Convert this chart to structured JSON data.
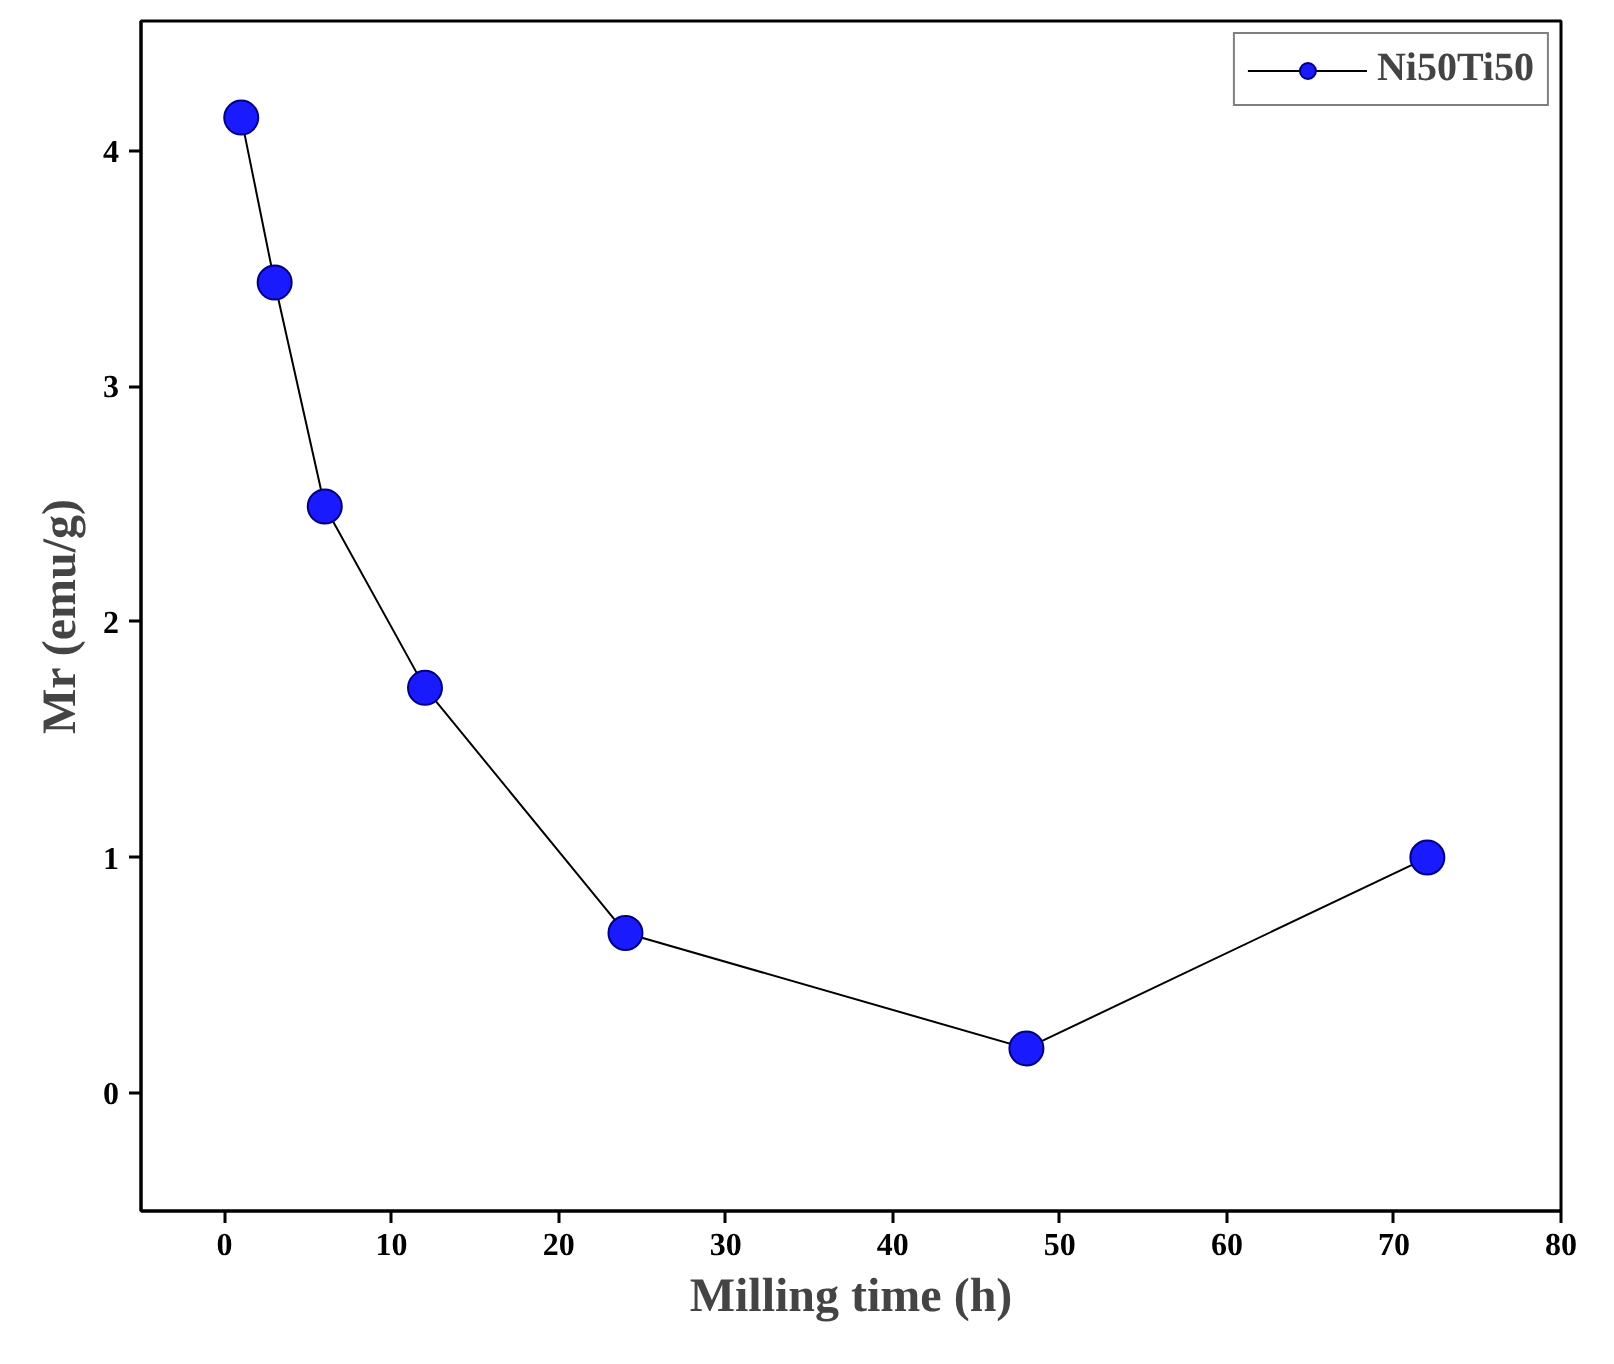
{
  "chart_data": {
    "type": "line",
    "xlabel": "Milling time (h)",
    "ylabel": "Mr (emu/g)",
    "x": [
      1,
      3,
      6,
      12,
      24,
      48,
      72
    ],
    "series": [
      {
        "name": "Ni50Ti50",
        "color": "#1a1aff",
        "values": [
          4.14,
          3.44,
          2.49,
          1.72,
          0.68,
          0.19,
          1.0
        ]
      }
    ],
    "xlim": [
      -5,
      80
    ],
    "xticks": [
      0,
      10,
      20,
      30,
      40,
      50,
      60,
      70,
      80
    ],
    "ylim": [
      -0.5,
      4.55
    ],
    "yticks": [
      0,
      1,
      2,
      3,
      4
    ],
    "marker": "circle",
    "line_style": "solid",
    "legend": "top right",
    "grid": false
  }
}
